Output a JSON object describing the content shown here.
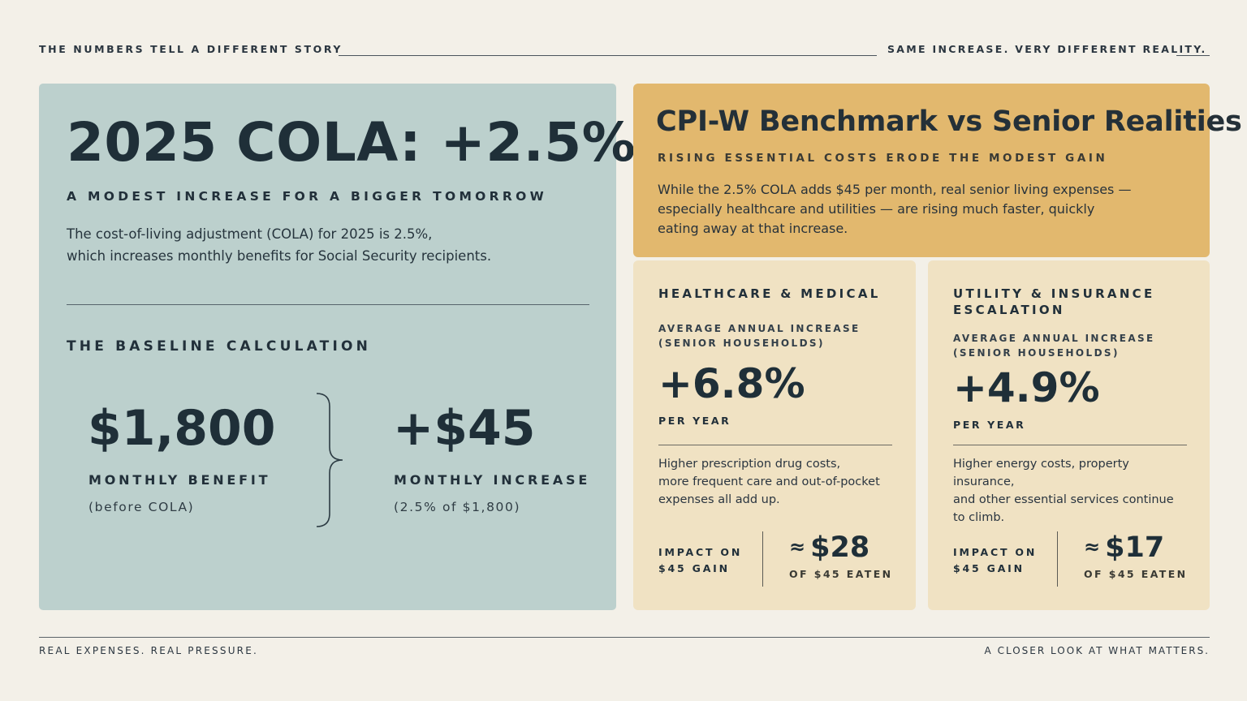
{
  "header": {
    "left_text": "THE NUMBERS TELL A DIFFERENT STORY",
    "right_text": "SAME INCREASE. VERY DIFFERENT REALITY."
  },
  "cola_card": {
    "title": "2025 COLA: +2.5%",
    "subtitle": "A MODEST INCREASE FOR A BIGGER TOMORROW",
    "intro_line1": "The cost-of-living adjustment (COLA) for 2025 is 2.5%,",
    "intro_line2": "which increases monthly benefits for Social Security recipients.",
    "baseline_heading": "THE BASELINE CALCULATION",
    "benefit": {
      "value": "$1,800",
      "label": "MONTHLY BENEFIT",
      "note": "(before COLA)"
    },
    "increase": {
      "value": "+$45",
      "label": "MONTHLY INCREASE",
      "note": "(2.5% of $1,800)"
    }
  },
  "benchmark_card": {
    "title": "CPI-W Benchmark vs Senior Realities",
    "subtitle": "RISING ESSENTIAL COSTS ERODE THE MODEST GAIN",
    "body_line1": "While the 2.5% COLA adds $45 per month, real senior living expenses —",
    "body_line2": "especially healthcare and utilities — are rising much faster, quickly",
    "body_line3": "eating away at that increase."
  },
  "healthcare_card": {
    "title": "HEALTHCARE & MEDICAL",
    "metric_label_line1": "AVERAGE ANNUAL INCREASE",
    "metric_label_line2": "(SENIOR HOUSEHOLDS)",
    "rate": "+6.8%",
    "per": "PER YEAR",
    "body_line1": "Higher prescription drug costs,",
    "body_line2": "more frequent care and out-of-pocket",
    "body_line3": "expenses all add up.",
    "impact_label_line1": "IMPACT ON",
    "impact_label_line2": "$45 GAIN",
    "impact_approx": "≈",
    "impact_value": "$28",
    "impact_sub": "OF $45 EATEN"
  },
  "utility_card": {
    "title_line1": "UTILITY & INSURANCE",
    "title_line2": "ESCALATION",
    "metric_label_line1": "AVERAGE ANNUAL INCREASE",
    "metric_label_line2": "(SENIOR HOUSEHOLDS)",
    "rate": "+4.9%",
    "per": "PER YEAR",
    "body_line1": "Higher energy costs, property insurance,",
    "body_line2": "and other essential services continue",
    "body_line3": "to climb.",
    "impact_label_line1": "IMPACT ON",
    "impact_label_line2": "$45 GAIN",
    "impact_approx": "≈",
    "impact_value": "$17",
    "impact_sub": "OF $45 EATEN"
  },
  "footer": {
    "left_text": "REAL EXPENSES. REAL PRESSURE.",
    "right_text": "A CLOSER LOOK AT WHAT MATTERS."
  },
  "colors": {
    "page_background": "#f3f0e8",
    "cola_card": "#bcd0cd",
    "benchmark_card": "#e2b86e",
    "stat_cards": "#f0e2c3",
    "text_dark": "#1f2f38"
  }
}
